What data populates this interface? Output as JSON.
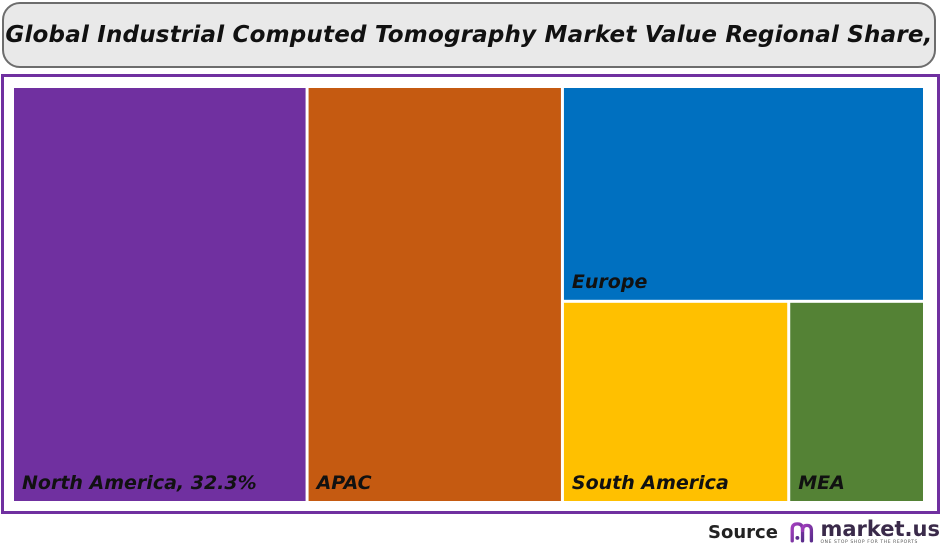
{
  "title": "Global Industrial Computed Tomography Market Value Regional Share,",
  "chart_data": {
    "type": "treemap",
    "tiles": [
      {
        "name": "North America",
        "label": "North America, 32.3%",
        "share_percent": 32.3,
        "color": "#7030a0"
      },
      {
        "name": "APAC",
        "label": "APAC",
        "share_percent": 28.0,
        "color": "#c55a11"
      },
      {
        "name": "Europe",
        "label": "Europe",
        "share_percent": 20.5,
        "color": "#0070c0"
      },
      {
        "name": "South America",
        "label": "South America",
        "share_percent": 12.0,
        "color": "#ffc000"
      },
      {
        "name": "MEA",
        "label": "MEA",
        "share_percent": 7.2,
        "color": "#548235"
      }
    ]
  },
  "source": {
    "label": "Source",
    "logo_text": "market.us",
    "tagline": "ONE STOP SHOP FOR THE REPORTS"
  },
  "colors": {
    "frame": "#7030a0",
    "title_bg": "#e9e9e9"
  }
}
